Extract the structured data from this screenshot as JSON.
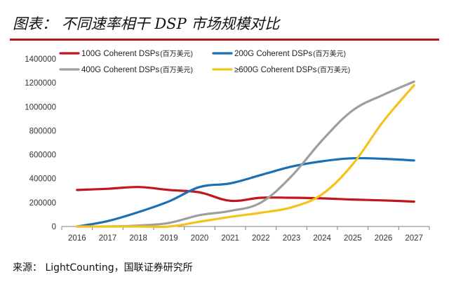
{
  "header": {
    "title": "图表： 不同速率相干 DSP 市场规模对比"
  },
  "source": {
    "text": "来源： LightCounting，国联证券研究所"
  },
  "chart_data": {
    "type": "line",
    "title": "",
    "xlabel": "",
    "ylabel": "",
    "x": [
      "2016",
      "2017",
      "2018",
      "2019",
      "2020",
      "2021",
      "2022",
      "2023",
      "2024",
      "2025",
      "2026",
      "2027"
    ],
    "ylim": [
      0,
      1400000
    ],
    "yticks": [
      0,
      200000,
      400000,
      600000,
      800000,
      1000000,
      1200000,
      1400000
    ],
    "ytick_labels": [
      "0",
      "200000",
      "400000",
      "600000",
      "800000",
      "1000000",
      "1200000",
      "1400000"
    ],
    "grid": false,
    "legend_position": "top",
    "series": [
      {
        "name": "100G Coherent DSPs",
        "unit": "(百万美元)",
        "color": "#c0161c",
        "values": [
          305000,
          315000,
          330000,
          305000,
          285000,
          215000,
          240000,
          240000,
          235000,
          225000,
          218000,
          208000
        ]
      },
      {
        "name": "200G Coherent DSPs",
        "unit": "(百万美元)",
        "color": "#1a6fb5",
        "values": [
          0,
          45000,
          120000,
          210000,
          330000,
          360000,
          430000,
          500000,
          545000,
          570000,
          565000,
          552000
        ]
      },
      {
        "name": "400G Coherent DSPs",
        "unit": "(百万美元)",
        "color": "#9e9e9e",
        "values": [
          0,
          0,
          8000,
          30000,
          95000,
          130000,
          200000,
          420000,
          720000,
          970000,
          1100000,
          1210000
        ]
      },
      {
        "name": "≥600G Coherent DSPs",
        "unit": "(百万美元)",
        "color": "#f5c21b",
        "values": [
          0,
          0,
          0,
          0,
          40000,
          80000,
          115000,
          160000,
          270000,
          520000,
          880000,
          1180000
        ]
      }
    ]
  }
}
